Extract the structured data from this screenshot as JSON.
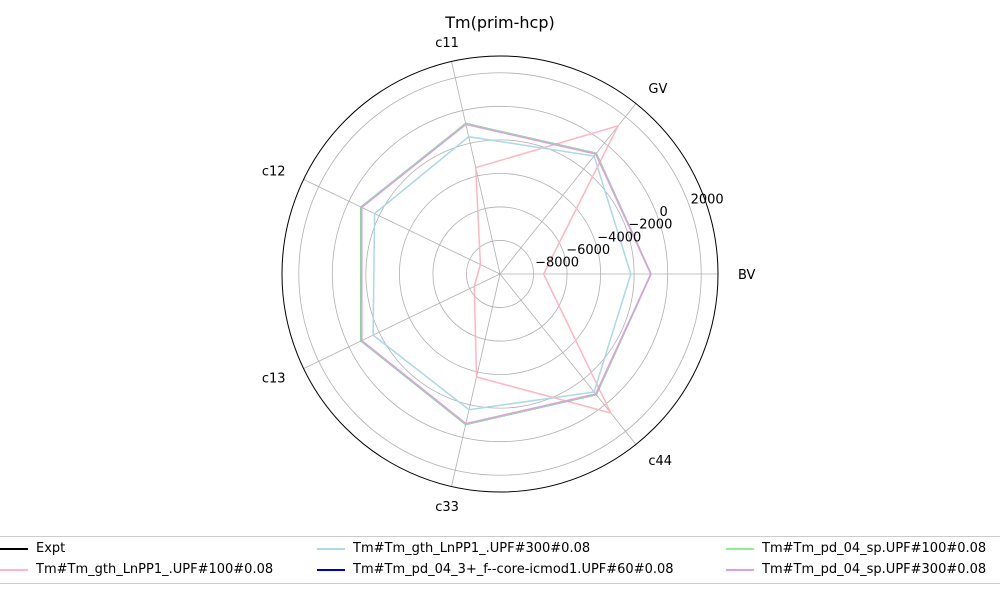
{
  "chart_data": {
    "type": "radar",
    "title": "Tm(prim-hcp)",
    "categories": [
      "BV",
      "GV",
      "c11",
      "c12",
      "c13",
      "c33",
      "c44"
    ],
    "radial_range": [
      -10000,
      3000
    ],
    "radial_ticks": [
      -8000,
      -6000,
      -4000,
      -2000,
      0,
      2000
    ],
    "radial_tick_labels": [
      "−8000",
      "−6000",
      "−4000",
      "−2000",
      "0",
      "2000"
    ],
    "grid": true,
    "legend_location": "bottom",
    "series": [
      {
        "name": "Expt",
        "color": "#000000",
        "values": null
      },
      {
        "name": "Tm#Tm_gth_LnPP1_.UPF#100#0.08",
        "color": "#ffb6c1",
        "values": [
          -7400,
          1300,
          -3500,
          -8700,
          -8300,
          -3700,
          600
        ]
      },
      {
        "name": "Tm#Tm_gth_LnPP1_.UPF#300#0.08",
        "color": "#add8e6",
        "values": [
          -2200,
          -1000,
          -1600,
          -1700,
          -1600,
          -1700,
          -1000
        ]
      },
      {
        "name": "Tm#Tm_pd_04_3+_f--core-icmod1.UPF#60#0.08",
        "color": "#0000cd",
        "values": [
          -1000,
          -800,
          -800,
          -800,
          -800,
          -800,
          -800
        ]
      },
      {
        "name": "Tm#Tm_pd_04_sp.UPF#100#0.08",
        "color": "#90ee90",
        "values": [
          -1000,
          -800,
          -800,
          -800,
          -800,
          -800,
          -800
        ]
      },
      {
        "name": "Tm#Tm_pd_04_sp.UPF#300#0.08",
        "color": "#dda0dd",
        "values": [
          -1000,
          -850,
          -850,
          -850,
          -850,
          -850,
          -850
        ]
      }
    ]
  }
}
